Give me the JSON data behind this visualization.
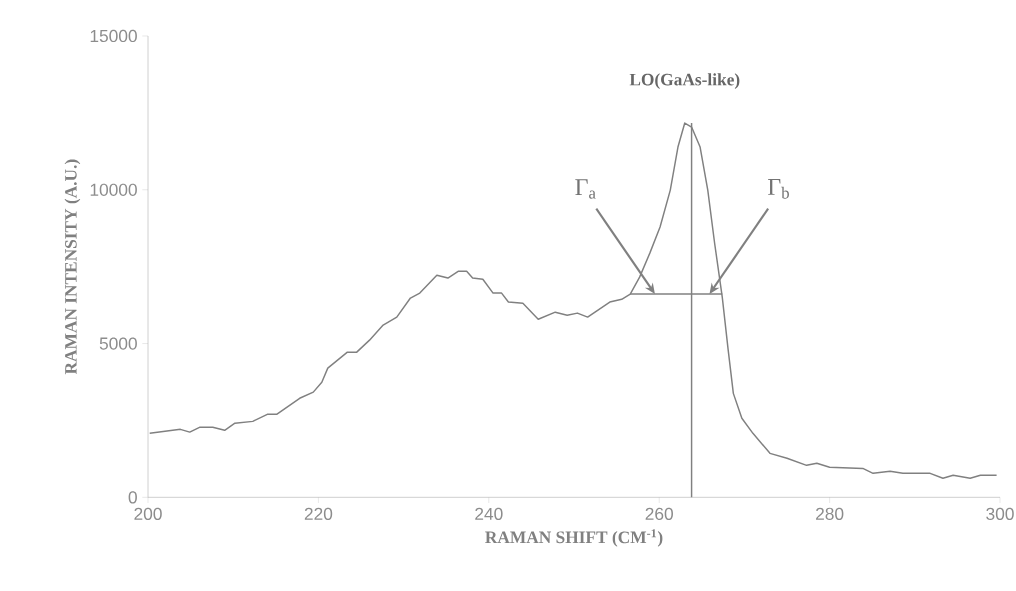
{
  "chart_data": {
    "type": "line",
    "xlabel": "RAMAN SHIFT (CM$^{-1}$)",
    "ylabel": "RAMAN INTENSITY (A.U.)",
    "xlim": [
      200,
      300
    ],
    "xticks": [
      200,
      220,
      240,
      260,
      280,
      300
    ],
    "ylim": [
      0,
      15000
    ],
    "yticks": [
      0,
      5000,
      10000,
      15000
    ],
    "grid": false,
    "marker": "none",
    "line_style": "solid",
    "series": [
      {
        "color": "#808080",
        "x": [
          200.2,
          203.8,
          204.9,
          206.1,
          207.6,
          209,
          210.2,
          212.3,
          214,
          215.1,
          217.8,
          219.4,
          220.4,
          221.1,
          223.4,
          224.5,
          226,
          227.6,
          229.2,
          230.8,
          231.9,
          233.9,
          235.2,
          236.4,
          237.4,
          238.1,
          239.3,
          240.5,
          241.5,
          242.3,
          244,
          245.8,
          247.8,
          249.2,
          250.4,
          251.6,
          254.2,
          255.6,
          256.6,
          257.7,
          258.9,
          260.1,
          261.3,
          262.2,
          263.0,
          263.8,
          264.8,
          265.7,
          266.5,
          267.4,
          268.1,
          268.7,
          269.7,
          271,
          273,
          275,
          277.3,
          278.5,
          280,
          283.9,
          285.1,
          287.1,
          288.6,
          291.8,
          293.3,
          294.5,
          296.5,
          297.7,
          299.6
        ],
        "values": [
          2080,
          2210,
          2120,
          2280,
          2280,
          2180,
          2410,
          2470,
          2700,
          2700,
          3220,
          3420,
          3740,
          4200,
          4720,
          4720,
          5110,
          5600,
          5860,
          6480,
          6640,
          7220,
          7130,
          7350,
          7350,
          7130,
          7090,
          6640,
          6640,
          6350,
          6310,
          5790,
          6020,
          5920,
          5990,
          5860,
          6350,
          6440,
          6610,
          7160,
          7940,
          8790,
          9990,
          11390,
          12170,
          12040,
          11390,
          9990,
          8270,
          6510,
          4780,
          3380,
          2570,
          2080,
          1430,
          1270,
          1040,
          1110,
          980,
          940,
          780,
          850,
          780,
          780,
          620,
          720,
          620,
          720,
          720
        ]
      },
      {
        "color": "#808080",
        "x": [
          256.6,
          267.4
        ],
        "values": [
          6610,
          6610
        ]
      },
      {
        "color": "#808080",
        "x": [
          263.8,
          263.8
        ],
        "values": [
          0,
          12170
        ]
      }
    ],
    "annotations": [
      {
        "text": "LO(GaAs-like)",
        "x": 263.0,
        "y": 12170
      },
      {
        "text": "Γ$_{a}$",
        "x": 259.5,
        "y": 6610
      },
      {
        "text": "Γ$_{b}$",
        "x": 265.9,
        "y": 6610
      }
    ]
  }
}
